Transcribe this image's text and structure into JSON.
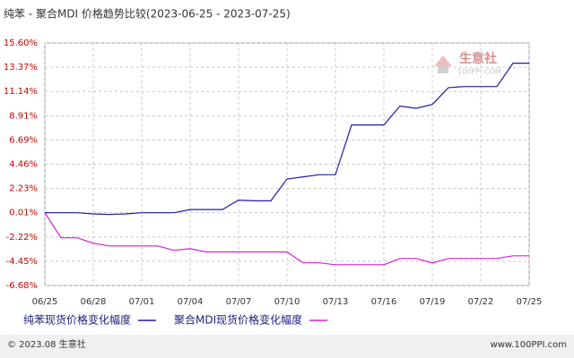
{
  "chart_data": {
    "type": "line",
    "title": "纯苯 - 聚合MDI 价格趋势比较(2023-06-25 - 2023-07-25)",
    "categories": [
      "06/25",
      null,
      null,
      "06/28",
      null,
      null,
      "07/01",
      null,
      null,
      "07/04",
      null,
      null,
      "07/07",
      null,
      null,
      "07/10",
      null,
      null,
      "07/13",
      null,
      null,
      "07/16",
      null,
      null,
      "07/19",
      null,
      null,
      "07/22",
      null,
      null,
      "07/25"
    ],
    "series": [
      {
        "name": "纯苯现货价格变化幅度",
        "color": "#1c1ca8",
        "values": [
          0.01,
          0,
          0,
          -0.1,
          -0.15,
          -0.1,
          0,
          0,
          0,
          0.3,
          0.3,
          0.3,
          1.16,
          1.1,
          1.1,
          3.1,
          3.3,
          3.5,
          3.5,
          8.07,
          8.07,
          8.07,
          9.8,
          9.6,
          9.95,
          11.5,
          11.6,
          11.6,
          11.6,
          13.74,
          13.74
        ]
      },
      {
        "name": "聚合MDI现货价格变化幅度",
        "color": "#d41fd4",
        "values": [
          0.01,
          -2.3,
          -2.3,
          -2.8,
          -3.05,
          -3.05,
          -3.05,
          -3.05,
          -3.45,
          -3.3,
          -3.6,
          -3.6,
          -3.6,
          -3.6,
          -3.6,
          -3.6,
          -4.6,
          -4.6,
          -4.77,
          -4.77,
          -4.77,
          -4.77,
          -4.2,
          -4.2,
          -4.6,
          -4.2,
          -4.2,
          -4.2,
          -4.2,
          -3.95,
          -3.95
        ]
      }
    ],
    "ylim": [
      -6.68,
      15.6
    ],
    "yticks": [
      {
        "value": 15.6,
        "label": "15.60%"
      },
      {
        "value": 13.37,
        "label": "13.37%"
      },
      {
        "value": 11.14,
        "label": "11.14%"
      },
      {
        "value": 8.91,
        "label": "8.91%"
      },
      {
        "value": 6.69,
        "label": "6.69%"
      },
      {
        "value": 4.46,
        "label": "4.46%"
      },
      {
        "value": 2.23,
        "label": "2.23%"
      },
      {
        "value": 0.01,
        "label": "0.01%"
      },
      {
        "value": -2.22,
        "label": "-2.22%"
      },
      {
        "value": -4.45,
        "label": "-4.45%"
      },
      {
        "value": -6.68,
        "label": "-6.68%"
      }
    ],
    "grid": true
  },
  "watermark": {
    "name": "生意社",
    "site": "100PPI.COM"
  },
  "footer": {
    "left": "© 2023.08 生意社",
    "right": "www.100PPI.com"
  }
}
